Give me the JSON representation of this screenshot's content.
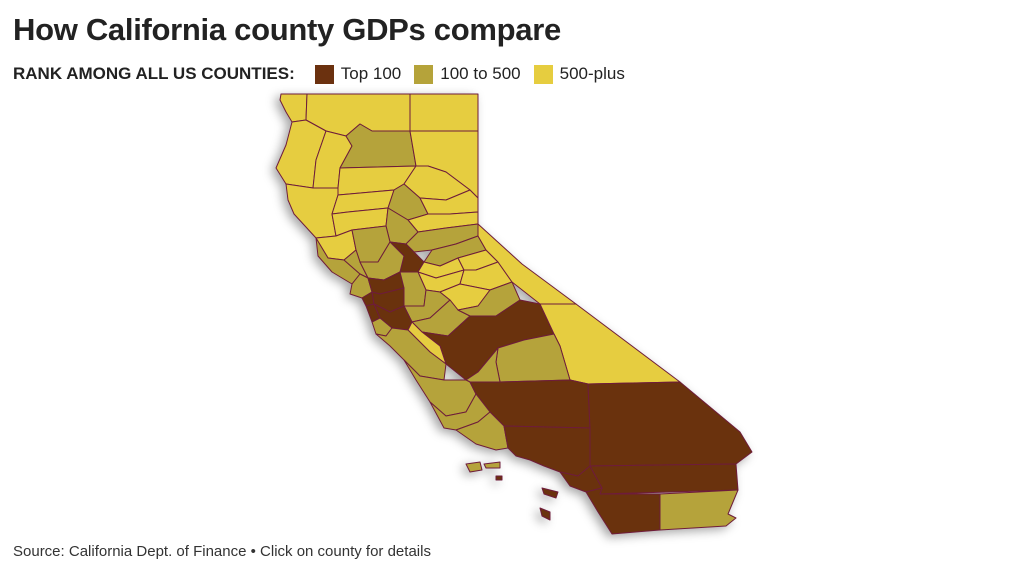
{
  "title": "How California county GDPs compare",
  "legend": {
    "label": "RANK AMONG ALL US COUNTIES:",
    "items": [
      {
        "label": "Top 100",
        "color": "#6b310f"
      },
      {
        "label": "100 to 500",
        "color": "#b5a33a"
      },
      {
        "label": "500-plus",
        "color": "#e6cd3f"
      }
    ]
  },
  "map": {
    "border_color": "#6e1e3a",
    "shadow": true
  },
  "footer": {
    "source": "Source: California Dept. of Finance • Click on county for details"
  }
}
